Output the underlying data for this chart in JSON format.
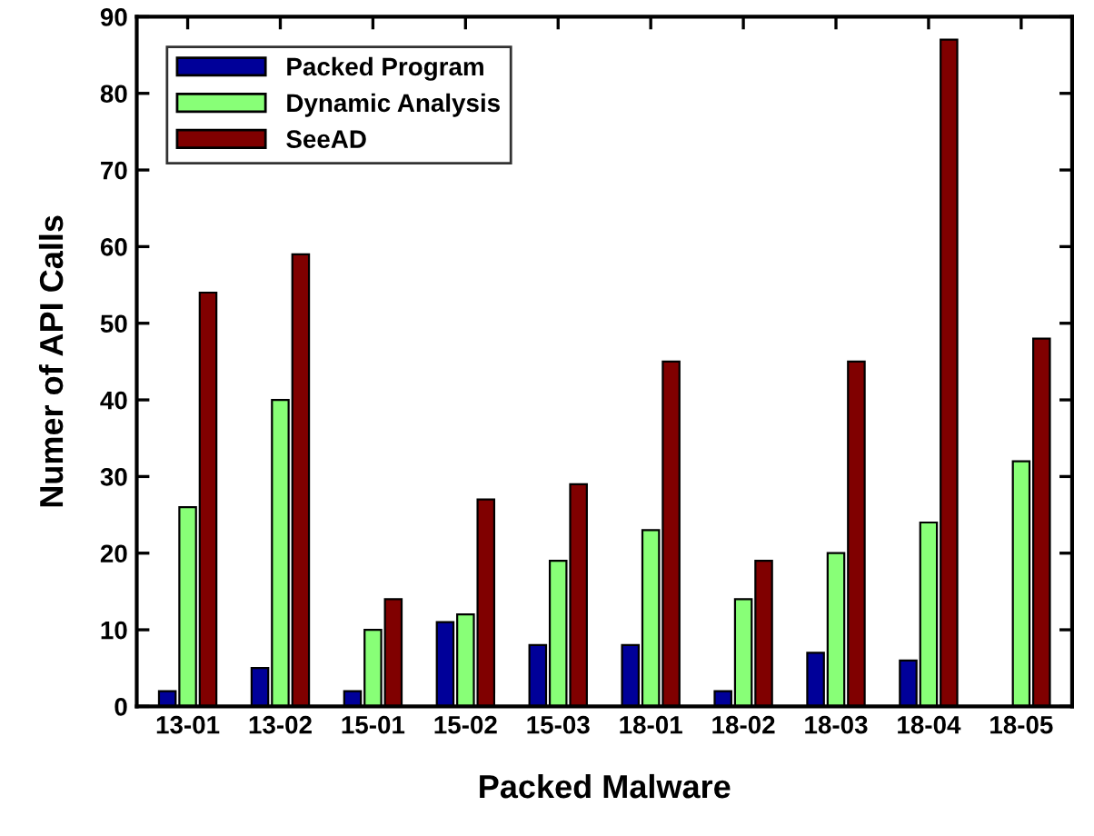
{
  "chart_data": {
    "type": "bar",
    "xlabel": "Packed Malware",
    "ylabel": "Numer of API Calls",
    "categories": [
      "13-01",
      "13-02",
      "15-01",
      "15-02",
      "15-03",
      "18-01",
      "18-02",
      "18-03",
      "18-04",
      "18-05"
    ],
    "series": [
      {
        "name": "Packed Program",
        "color": "#000099",
        "values": [
          2,
          5,
          2,
          11,
          8,
          8,
          2,
          7,
          6,
          null
        ]
      },
      {
        "name": "Dynamic Analysis",
        "color": "#88ff77",
        "values": [
          26,
          40,
          10,
          12,
          19,
          23,
          14,
          20,
          24,
          32
        ]
      },
      {
        "name": "SeeAD",
        "color": "#800000",
        "values": [
          54,
          59,
          14,
          27,
          29,
          45,
          19,
          45,
          87,
          48
        ]
      }
    ],
    "ylim": [
      0,
      90
    ],
    "yticks": [
      0,
      10,
      20,
      30,
      40,
      50,
      60,
      70,
      80,
      90
    ],
    "grid": false,
    "legend": "top left"
  }
}
